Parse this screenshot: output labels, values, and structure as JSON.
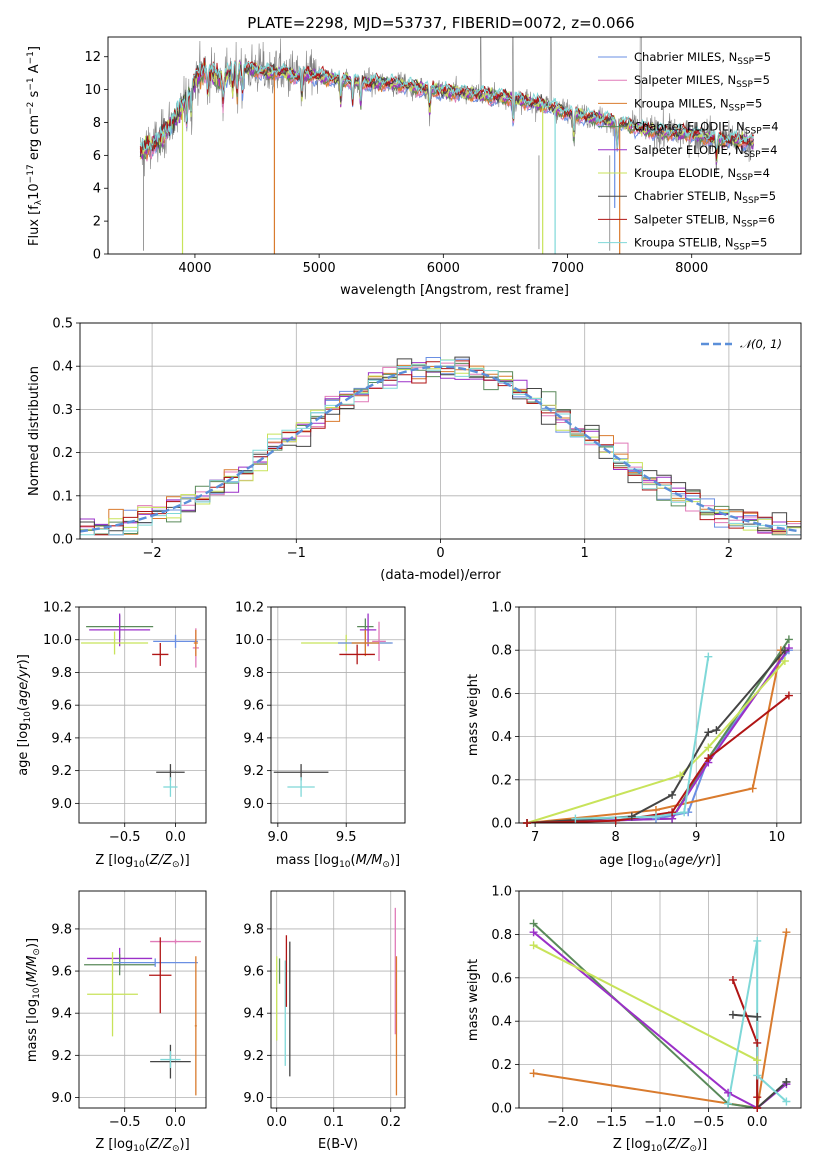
{
  "title": "PLATE=2298, MJD=53737, FIBERID=0072, z=0.066",
  "colors": {
    "chabrier_miles": "#6a8fe3",
    "salpeter_miles": "#e07ab8",
    "kroupa_miles": "#d97b2e",
    "chabrier_elodie": "#5a8a5a",
    "salpeter_elodie": "#9b30c8",
    "kroupa_elodie": "#c8e35a",
    "chabrier_stelib": "#444444",
    "salpeter_stelib": "#b01515",
    "kroupa_stelib": "#7fd8d8",
    "data": "#808080",
    "gaussian": "#5b8fd9"
  },
  "chart_data": [
    {
      "type": "line",
      "title": "PLATE=2298, MJD=53737, FIBERID=0072, z=0.066",
      "xlabel": "wavelength [Angstrom, rest frame]",
      "ylabel": "Flux [fλ10⁻¹⁷ erg cm⁻² s⁻¹ A⁻¹]",
      "xlim": [
        3300,
        8880
      ],
      "ylim": [
        0,
        13.2
      ],
      "xticks": [
        4000,
        5000,
        6000,
        7000,
        8000
      ],
      "yticks": [
        0,
        2,
        4,
        6,
        8,
        10,
        12
      ],
      "legend_position": "top-right",
      "series": [
        {
          "name": "Chabrier MILES, N_SSP=5",
          "key": "chabrier_miles"
        },
        {
          "name": "Salpeter MILES, N_SSP=5",
          "key": "salpeter_miles"
        },
        {
          "name": "Kroupa MILES, N_SSP=5",
          "key": "kroupa_miles"
        },
        {
          "name": "Chabrier ELODIE, N_SSP=4",
          "key": "chabrier_elodie"
        },
        {
          "name": "Salpeter ELODIE, N_SSP=4",
          "key": "salpeter_elodie"
        },
        {
          "name": "Kroupa ELODIE, N_SSP=4",
          "key": "kroupa_elodie"
        },
        {
          "name": "Chabrier STELIB, N_SSP=5",
          "key": "chabrier_stelib"
        },
        {
          "name": "Salpeter STELIB, N_SSP=6",
          "key": "salpeter_stelib"
        },
        {
          "name": "Kroupa STELIB, N_SSP=5",
          "key": "kroupa_stelib"
        }
      ],
      "continuum": {
        "x": [
          3560,
          3700,
          3800,
          3900,
          4000,
          4100,
          4200,
          4300,
          4400,
          4500,
          4600,
          4700,
          4800,
          4900,
          5000,
          5200,
          5400,
          5600,
          5800,
          6000,
          6200,
          6400,
          6600,
          6800,
          7000,
          7200,
          7400,
          7600,
          7800,
          8000,
          8200,
          8400,
          8500
        ],
        "y": [
          6.2,
          6.8,
          7.8,
          9.0,
          10.6,
          11.3,
          10.6,
          11.2,
          11.3,
          11.2,
          11.0,
          11.1,
          10.8,
          10.9,
          10.8,
          10.6,
          10.4,
          10.4,
          10.1,
          9.9,
          9.8,
          9.6,
          9.4,
          9.1,
          8.6,
          8.3,
          8.0,
          7.6,
          7.4,
          7.3,
          7.0,
          6.9,
          6.8
        ]
      }
    },
    {
      "type": "histogram",
      "xlabel": "(data-model)/error",
      "ylabel": "Normed distribution",
      "xlim": [
        -2.5,
        2.5
      ],
      "ylim": [
        0,
        0.5
      ],
      "xticks": [
        -2,
        -1,
        0,
        1,
        2
      ],
      "yticks": [
        0.0,
        0.1,
        0.2,
        0.3,
        0.4,
        0.5
      ],
      "legend": "𝒩(0, 1)",
      "legend_position": "top-right",
      "bin_edges_start": -2.5,
      "bin_width": 0.1
    },
    {
      "type": "scatter",
      "xlabel": "Z [log10(Z/Z☉)]",
      "ylabel": "age  [log10(age/yr)]",
      "xlim": [
        -0.95,
        0.3
      ],
      "ylim": [
        8.88,
        10.2
      ],
      "xticks": [
        -0.5,
        0.0
      ],
      "yticks": [
        9.0,
        9.2,
        9.4,
        9.6,
        9.8,
        10.0,
        10.2
      ],
      "points": [
        {
          "key": "chabrier_elodie",
          "x": -0.55,
          "y": 10.08,
          "xerr": 0.33,
          "yerr": 0.07
        },
        {
          "key": "salpeter_elodie",
          "x": -0.55,
          "y": 10.06,
          "xerr": 0.3,
          "yerr": 0.1
        },
        {
          "key": "kroupa_elodie",
          "x": -0.6,
          "y": 9.98,
          "xerr": 0.33,
          "yerr": 0.07
        },
        {
          "key": "chabrier_miles",
          "x": 0.0,
          "y": 9.99,
          "xerr": 0.22,
          "yerr": 0.04
        },
        {
          "key": "salpeter_miles",
          "x": 0.2,
          "y": 9.95,
          "xerr": 0.03,
          "yerr": 0.12
        },
        {
          "key": "kroupa_miles",
          "x": 0.2,
          "y": 9.98,
          "xerr": 0.02,
          "yerr": 0.08
        },
        {
          "key": "salpeter_stelib",
          "x": -0.15,
          "y": 9.91,
          "xerr": 0.08,
          "yerr": 0.07
        },
        {
          "key": "chabrier_stelib",
          "x": -0.05,
          "y": 9.19,
          "xerr": 0.14,
          "yerr": 0.05
        },
        {
          "key": "kroupa_stelib",
          "x": -0.05,
          "y": 9.1,
          "xerr": 0.07,
          "yerr": 0.06
        }
      ]
    },
    {
      "type": "scatter",
      "xlabel": "mass [log10(M/M☉)]",
      "ylabel": "",
      "xlim": [
        8.95,
        9.93
      ],
      "ylim": [
        8.88,
        10.2
      ],
      "xticks": [
        9.0,
        9.5
      ],
      "yticks": [
        9.0,
        9.2,
        9.4,
        9.6,
        9.8,
        10.0,
        10.2
      ],
      "points": [
        {
          "key": "chabrier_elodie",
          "x": 9.64,
          "y": 10.08,
          "xerr": 0.06,
          "yerr": 0.05
        },
        {
          "key": "salpeter_elodie",
          "x": 9.66,
          "y": 10.06,
          "xerr": 0.06,
          "yerr": 0.1
        },
        {
          "key": "kroupa_elodie",
          "x": 9.5,
          "y": 9.98,
          "xerr": 0.33,
          "yerr": 0.05
        },
        {
          "key": "chabrier_miles",
          "x": 9.64,
          "y": 9.98,
          "xerr": 0.2,
          "yerr": 0.05
        },
        {
          "key": "salpeter_miles",
          "x": 9.74,
          "y": 9.99,
          "xerr": 0.05,
          "yerr": 0.12
        },
        {
          "key": "kroupa_miles",
          "x": 9.64,
          "y": 9.98,
          "xerr": 0.1,
          "yerr": 0.08
        },
        {
          "key": "salpeter_stelib",
          "x": 9.58,
          "y": 9.91,
          "xerr": 0.13,
          "yerr": 0.06
        },
        {
          "key": "chabrier_stelib",
          "x": 9.17,
          "y": 9.19,
          "xerr": 0.2,
          "yerr": 0.05
        },
        {
          "key": "kroupa_stelib",
          "x": 9.17,
          "y": 9.1,
          "xerr": 0.1,
          "yerr": 0.06
        }
      ]
    },
    {
      "type": "line",
      "xlabel": "age  [log10(age/yr)]",
      "ylabel": "mass weight",
      "xlim": [
        6.8,
        10.3
      ],
      "ylim": [
        0,
        1.0
      ],
      "xticks": [
        7,
        8,
        9,
        10
      ],
      "yticks": [
        0.0,
        0.2,
        0.4,
        0.6,
        0.8,
        1.0
      ],
      "series": [
        {
          "key": "chabrier_miles",
          "x": [
            6.9,
            8.5,
            8.9,
            9.15,
            10.15
          ],
          "y": [
            0.0,
            0.02,
            0.05,
            0.3,
            0.8
          ]
        },
        {
          "key": "kroupa_miles",
          "x": [
            6.9,
            8.5,
            9.7,
            10.05
          ],
          "y": [
            0.0,
            0.06,
            0.16,
            0.8
          ]
        },
        {
          "key": "chabrier_elodie",
          "x": [
            6.9,
            8.7,
            9.15,
            10.15
          ],
          "y": [
            0.0,
            0.02,
            0.3,
            0.85
          ]
        },
        {
          "key": "salpeter_elodie",
          "x": [
            6.9,
            8.7,
            9.15,
            10.15
          ],
          "y": [
            0.0,
            0.02,
            0.28,
            0.81
          ]
        },
        {
          "key": "kroupa_elodie",
          "x": [
            6.9,
            8.8,
            9.15,
            10.1
          ],
          "y": [
            0.0,
            0.22,
            0.35,
            0.75
          ]
        },
        {
          "key": "chabrier_stelib",
          "x": [
            6.9,
            8.2,
            8.7,
            9.15,
            9.25,
            10.1
          ],
          "y": [
            0.0,
            0.03,
            0.13,
            0.42,
            0.43,
            0.8
          ]
        },
        {
          "key": "salpeter_stelib",
          "x": [
            6.9,
            8.0,
            8.7,
            9.15,
            10.15
          ],
          "y": [
            0.0,
            0.01,
            0.05,
            0.3,
            0.59
          ]
        },
        {
          "key": "kroupa_stelib",
          "x": [
            7.5,
            8.5,
            8.85,
            9.15
          ],
          "y": [
            0.02,
            0.03,
            0.05,
            0.77
          ]
        }
      ]
    },
    {
      "type": "scatter",
      "xlabel": "Z [log10(Z/Z☉)]",
      "ylabel": "mass [log10(M/M☉)]",
      "xlim": [
        -0.95,
        0.3
      ],
      "ylim": [
        8.95,
        9.98
      ],
      "xticks": [
        -0.5,
        0.0
      ],
      "yticks": [
        9.0,
        9.2,
        9.4,
        9.6,
        9.8
      ],
      "points": [
        {
          "key": "salpeter_miles",
          "x": 0.0,
          "y": 9.74,
          "xerr": 0.25,
          "yerr": 0.01
        },
        {
          "key": "salpeter_elodie",
          "x": -0.55,
          "y": 9.66,
          "xerr": 0.32,
          "yerr": 0.05
        },
        {
          "key": "chabrier_elodie",
          "x": -0.55,
          "y": 9.63,
          "xerr": 0.35,
          "yerr": 0.05
        },
        {
          "key": "chabrier_miles",
          "x": -0.2,
          "y": 9.64,
          "xerr": 0.42,
          "yerr": 0.02
        },
        {
          "key": "kroupa_elodie",
          "x": -0.62,
          "y": 9.49,
          "xerr": 0.25,
          "yerr": 0.2
        },
        {
          "key": "salpeter_stelib",
          "x": -0.15,
          "y": 9.58,
          "xerr": 0.11,
          "yerr": 0.18
        },
        {
          "key": "kroupa_miles",
          "x": 0.2,
          "y": 9.34,
          "xerr": 0.01,
          "yerr": 0.33
        },
        {
          "key": "chabrier_stelib",
          "x": -0.05,
          "y": 9.17,
          "xerr": 0.2,
          "yerr": 0.08
        },
        {
          "key": "kroupa_stelib",
          "x": -0.05,
          "y": 9.18,
          "xerr": 0.1,
          "yerr": 0.04
        }
      ]
    },
    {
      "type": "scatter",
      "xlabel": "E(B-V)",
      "ylabel": "",
      "xlim": [
        -0.01,
        0.225
      ],
      "ylim": [
        8.95,
        9.98
      ],
      "xticks": [
        0.0,
        0.1,
        0.2
      ],
      "yticks": [
        9.0,
        9.2,
        9.4,
        9.6,
        9.8
      ],
      "points": [
        {
          "key": "kroupa_elodie",
          "x": 0.0,
          "y": 9.47,
          "yerr": 0.2
        },
        {
          "key": "chabrier_elodie",
          "x": 0.005,
          "y": 9.6,
          "yerr": 0.06
        },
        {
          "key": "kroupa_stelib",
          "x": 0.015,
          "y": 9.4,
          "yerr": 0.25
        },
        {
          "key": "salpeter_stelib",
          "x": 0.017,
          "y": 9.6,
          "yerr": 0.17
        },
        {
          "key": "chabrier_stelib",
          "x": 0.023,
          "y": 9.42,
          "yerr": 0.32
        },
        {
          "key": "salpeter_miles",
          "x": 0.208,
          "y": 9.6,
          "yerr": 0.3
        },
        {
          "key": "kroupa_miles",
          "x": 0.21,
          "y": 9.34,
          "yerr": 0.33
        }
      ]
    },
    {
      "type": "line",
      "xlabel": "Z [log10(Z/Z☉)]",
      "ylabel": "mass weight",
      "xlim": [
        -2.45,
        0.45
      ],
      "ylim": [
        0,
        1.0
      ],
      "xticks": [
        -2.0,
        -1.5,
        -1.0,
        -0.5,
        0.0
      ],
      "yticks": [
        0.0,
        0.2,
        0.4,
        0.6,
        0.8,
        1.0
      ],
      "series": [
        {
          "key": "kroupa_miles",
          "x": [
            -2.3,
            0.0,
            0.3
          ],
          "y": [
            0.16,
            0.0,
            0.81
          ]
        },
        {
          "key": "chabrier_elodie",
          "x": [
            -2.3,
            -0.3,
            0.0,
            0.3
          ],
          "y": [
            0.85,
            0.02,
            0.0,
            0.12
          ]
        },
        {
          "key": "salpeter_elodie",
          "x": [
            -2.3,
            -0.3,
            0.0,
            0.3
          ],
          "y": [
            0.81,
            0.07,
            0.0,
            0.11
          ]
        },
        {
          "key": "kroupa_elodie",
          "x": [
            -2.3,
            0.0
          ],
          "y": [
            0.75,
            0.22
          ]
        },
        {
          "key": "chabrier_stelib",
          "x": [
            -0.25,
            0.0,
            0.0,
            0.3
          ],
          "y": [
            0.43,
            0.42,
            0.0,
            0.12
          ]
        },
        {
          "key": "salpeter_stelib",
          "x": [
            -0.25,
            0.0,
            0.0,
            0.0
          ],
          "y": [
            0.59,
            0.3,
            0.05,
            0.0
          ]
        },
        {
          "key": "kroupa_stelib",
          "x": [
            -0.3,
            0.0,
            0.0,
            0.3
          ],
          "y": [
            0.02,
            0.77,
            0.15,
            0.03
          ]
        }
      ]
    }
  ]
}
